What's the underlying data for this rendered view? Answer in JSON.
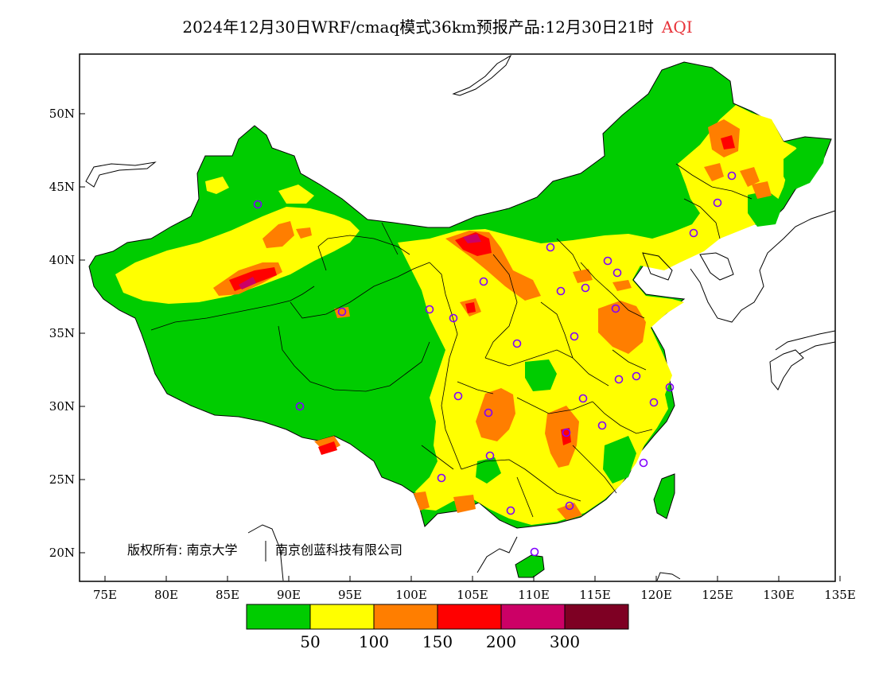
{
  "title": {
    "main": "2024年12月30日WRF/cmaq模式36km预报产品:12月30日21时",
    "variable": "AQI",
    "accent_color": "#e8333a"
  },
  "axes": {
    "x_ticks": [
      "75E",
      "80E",
      "85E",
      "90E",
      "95E",
      "100E",
      "105E",
      "110E",
      "115E",
      "120E",
      "125E",
      "130E",
      "135E"
    ],
    "y_ticks": [
      "50N",
      "45N",
      "40N",
      "35N",
      "30N",
      "25N",
      "20N"
    ]
  },
  "copyright": {
    "left": "版权所有: 南京大学",
    "right": "南京创蓝科技有限公司"
  },
  "legend": {
    "colors": [
      "#00cc00",
      "#ffff00",
      "#ff7e00",
      "#ff0000",
      "#cc0066",
      "#7e0023"
    ],
    "labels": [
      "50",
      "100",
      "150",
      "200",
      "300"
    ]
  }
}
